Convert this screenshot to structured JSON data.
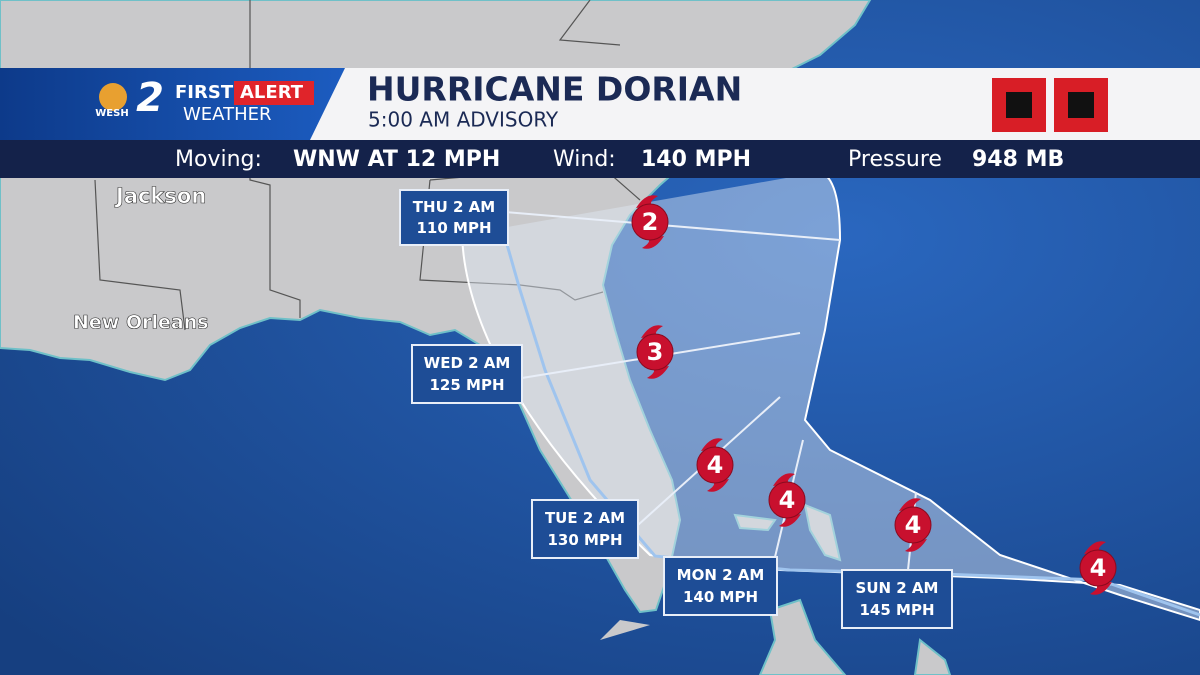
{
  "header": {
    "logo": {
      "number": "2",
      "station": "WESH",
      "brand_top": "FIRST",
      "brand_alert": "ALERT",
      "brand_bottom": "WEATHER"
    },
    "title": "HURRICANE DORIAN",
    "subtitle": "5:00 AM ADVISORY"
  },
  "info_bar": {
    "moving_label": "Moving:",
    "moving_value": "WNW AT 12 MPH",
    "wind_label": "Wind:",
    "wind_value": "140 MPH",
    "pressure_label": "Pressure",
    "pressure_value": "948 MB"
  },
  "cities": [
    "Jackson",
    "New Orleans"
  ],
  "forecast_points": [
    {
      "time": "THU 2 AM",
      "wind": "110 MPH"
    },
    {
      "time": "WED 2 AM",
      "wind": "125 MPH"
    },
    {
      "time": "TUE 2 AM",
      "wind": "130 MPH"
    },
    {
      "time": "MON 2 AM",
      "wind": "140 MPH"
    },
    {
      "time": "SUN 2 AM",
      "wind": "145 MPH"
    }
  ],
  "storm_markers": [
    "2",
    "3",
    "4",
    "4",
    "4",
    "4"
  ]
}
